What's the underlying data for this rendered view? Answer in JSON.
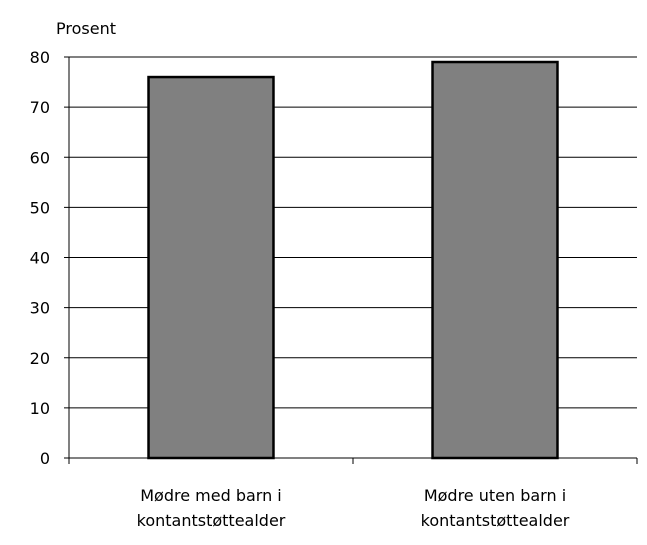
{
  "chart_data": {
    "type": "bar",
    "title": "",
    "xlabel": "",
    "ylabel": "Prosent",
    "ylim": [
      0,
      80
    ],
    "yticks": [
      0,
      10,
      20,
      30,
      40,
      50,
      60,
      70,
      80
    ],
    "grid": true,
    "legend": "none",
    "categories": [
      [
        "Mødre med barn i",
        "kontantstøttealder"
      ],
      [
        "Mødre uten barn i",
        "kontantstøttealder"
      ]
    ],
    "values": [
      76,
      79
    ],
    "colors": {
      "bar_fill": "#808080",
      "bar_stroke": "#000000",
      "grid": "#000000"
    }
  }
}
